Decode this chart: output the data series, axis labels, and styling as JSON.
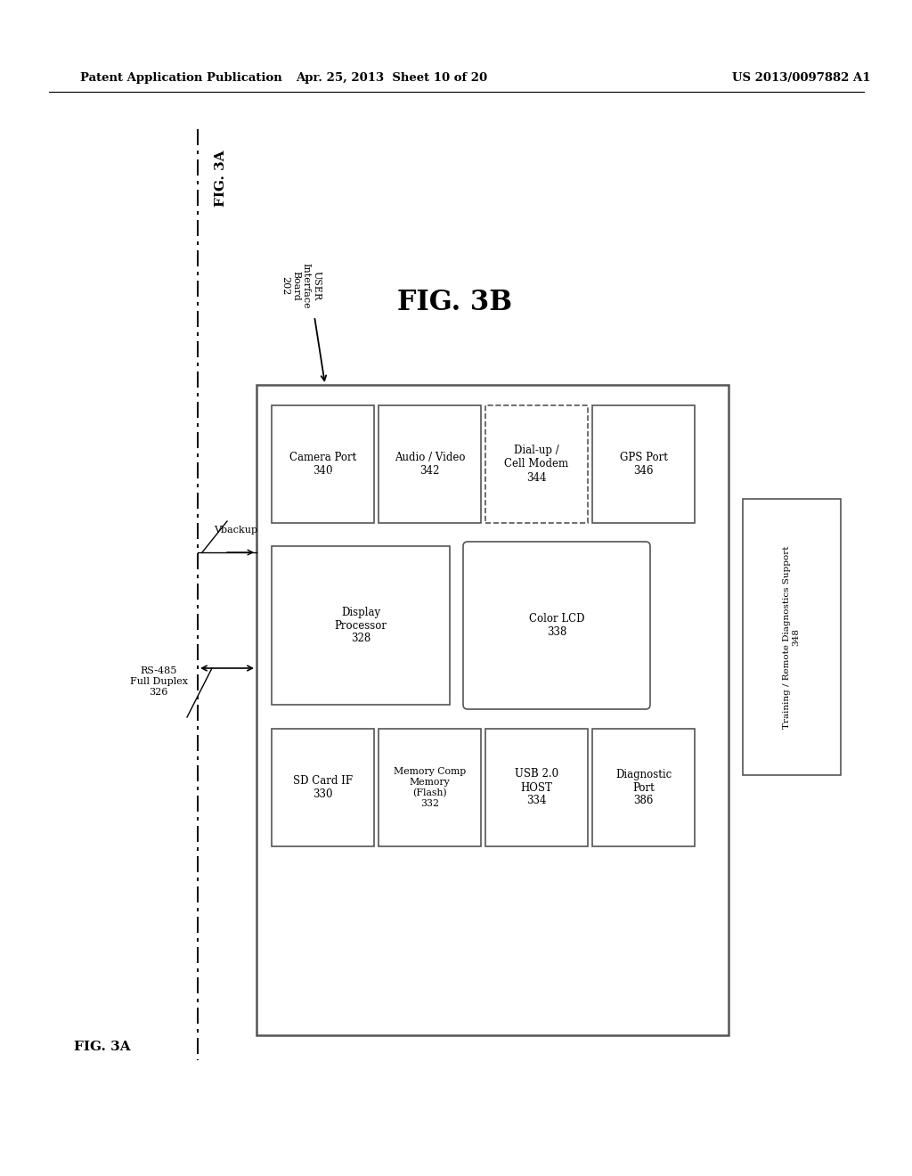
{
  "header_left": "Patent Application Publication",
  "header_mid": "Apr. 25, 2013  Sheet 10 of 20",
  "header_right": "US 2013/0097882 A1",
  "background_color": "#ffffff",
  "fig3a_top": "FIG. 3A",
  "fig3b": "FIG. 3B",
  "fig3a_bot": "FIG. 3A",
  "user_if_label": "USER\nInterface\nBoard\n202",
  "vbackup_label": "Vbackup",
  "rs485_label": "RS-485\nFull Duplex\n326",
  "right_box_label": "Training / Remote Diagnostics Support\n348"
}
